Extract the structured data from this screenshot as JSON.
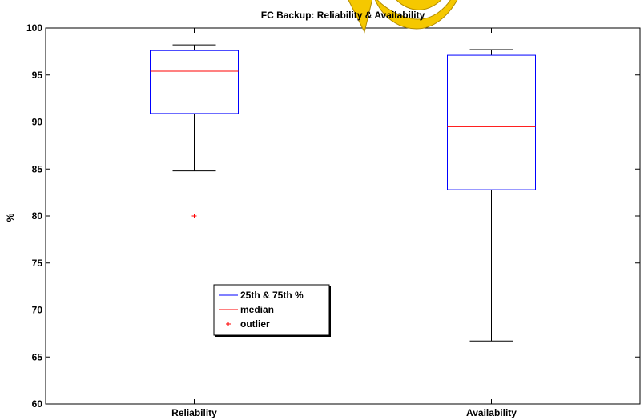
{
  "chart_data": {
    "type": "box",
    "title": "FC Backup: Reliability & Availability",
    "xlabel": "",
    "ylabel": "%",
    "ylim": [
      60,
      100
    ],
    "yticks": [
      60,
      65,
      70,
      75,
      80,
      85,
      90,
      95,
      100
    ],
    "categories": [
      "Reliability",
      "Availability"
    ],
    "boxes": [
      {
        "category": "Reliability",
        "whisker_low": 84.8,
        "q1": 90.9,
        "median": 95.4,
        "q3": 97.6,
        "whisker_high": 98.2,
        "outliers": [
          80.0
        ]
      },
      {
        "category": "Availability",
        "whisker_low": 66.7,
        "q1": 82.8,
        "median": 89.5,
        "q3": 97.1,
        "whisker_high": 97.7,
        "outliers": []
      }
    ],
    "legend": {
      "position": "lower-left",
      "entries": [
        {
          "label": "25th & 75th %",
          "marker": "line",
          "color": "#0000ff"
        },
        {
          "label": "median",
          "marker": "line",
          "color": "#ff0000"
        },
        {
          "label": "outlier",
          "marker": "+",
          "color": "#ff0000"
        }
      ]
    },
    "colors": {
      "box": "#0000ff",
      "median": "#ff0000",
      "whisker": "#000000",
      "outlier": "#ff0000",
      "watermark": "#f5c800"
    }
  }
}
